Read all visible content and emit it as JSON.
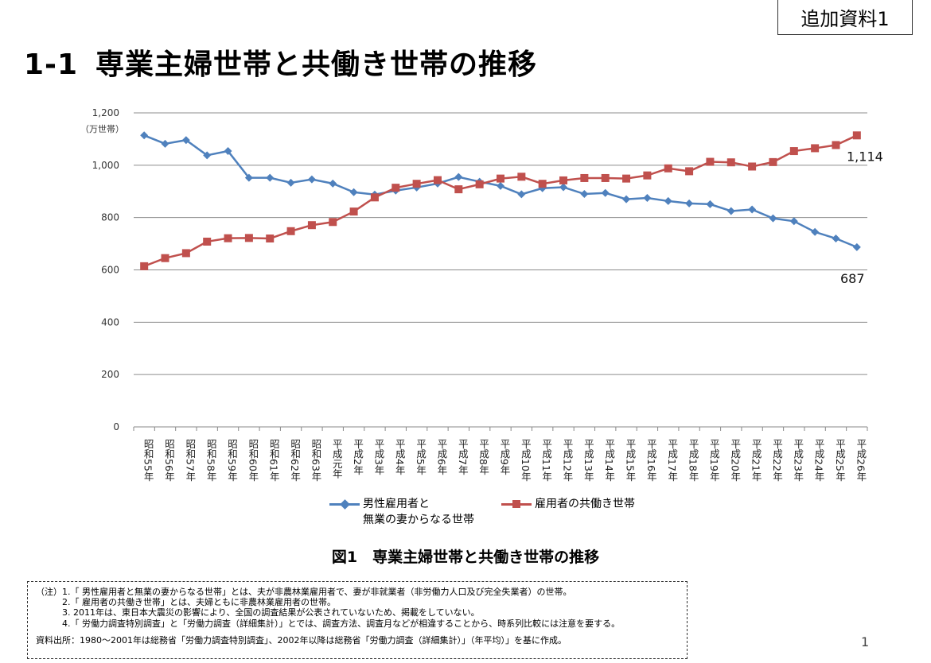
{
  "badge": "追加資料1",
  "title": {
    "number": "1-1",
    "text": "専業主婦世帯と共働き世帯の推移"
  },
  "chart_data": {
    "type": "line",
    "unit_label": "（万世帯）",
    "ylim": [
      0,
      1200
    ],
    "yticks": [
      "0",
      "200",
      "400",
      "600",
      "800",
      "1,000",
      "1,200"
    ],
    "ytick_values": [
      0,
      200,
      400,
      600,
      800,
      1000,
      1200
    ],
    "grid": true,
    "legend_position": "bottom",
    "categories": [
      "昭和55年",
      "昭和56年",
      "昭和57年",
      "昭和58年",
      "昭和59年",
      "昭和60年",
      "昭和61年",
      "昭和62年",
      "昭和63年",
      "平成元年",
      "平成2年",
      "平成3年",
      "平成4年",
      "平成5年",
      "平成6年",
      "平成7年",
      "平成8年",
      "平成9年",
      "平成10年",
      "平成11年",
      "平成12年",
      "平成13年",
      "平成14年",
      "平成15年",
      "平成16年",
      "平成17年",
      "平成18年",
      "平成19年",
      "平成20年",
      "平成21年",
      "平成22年",
      "平成23年",
      "平成24年",
      "平成25年",
      "平成26年"
    ],
    "series": [
      {
        "name": "男性雇用者と無業の妻からなる世帯",
        "name_line1": "男性雇用者と",
        "name_line2": "無業の妻からなる世帯",
        "color": "#4f81bd",
        "marker": "diamond",
        "values": [
          1114,
          1082,
          1096,
          1038,
          1054,
          952,
          952,
          933,
          946,
          930,
          897,
          888,
          903,
          915,
          930,
          955,
          937,
          921,
          889,
          912,
          916,
          890,
          894,
          870,
          875,
          863,
          854,
          851,
          825,
          831,
          797,
          786,
          745,
          720,
          687
        ],
        "end_label": "687"
      },
      {
        "name": "雇用者の共働き世帯",
        "color": "#c0504d",
        "marker": "square",
        "values": [
          614,
          645,
          664,
          708,
          721,
          722,
          720,
          748,
          771,
          783,
          823,
          877,
          914,
          929,
          943,
          908,
          927,
          949,
          956,
          929,
          942,
          951,
          951,
          949,
          961,
          988,
          977,
          1013,
          1011,
          995,
          1012,
          1054,
          1065,
          1077,
          1114
        ],
        "end_label": "1,114"
      }
    ]
  },
  "caption": "図1　専業主婦世帯と共働き世帯の推移",
  "notes": [
    "（注）1.「 男性雇用者と無業の妻からなる世帯」とは、夫が非農林業雇用者で、妻が非就業者（非労働力人口及び完全失業者）の世帯。",
    "　　　2.「 雇用者の共働き世帯」とは、夫婦ともに非農林業雇用者の世帯。",
    "　　　3. 2011年は、東日本大震災の影響により、全国の調査結果が公表されていないため、掲載をしていない。",
    "　　　4.「 労働力調査特別調査」と「労働力調査（詳細集計）」とでは、調査方法、調査月などが相違することから、時系列比較には注意を要する。"
  ],
  "source": "資料出所：1980～2001年は総務省「労働力調査特別調査」、2002年以降は総務省「労働力調査（詳細集計）」（年平均）」を基に作成。",
  "page_number": "1"
}
